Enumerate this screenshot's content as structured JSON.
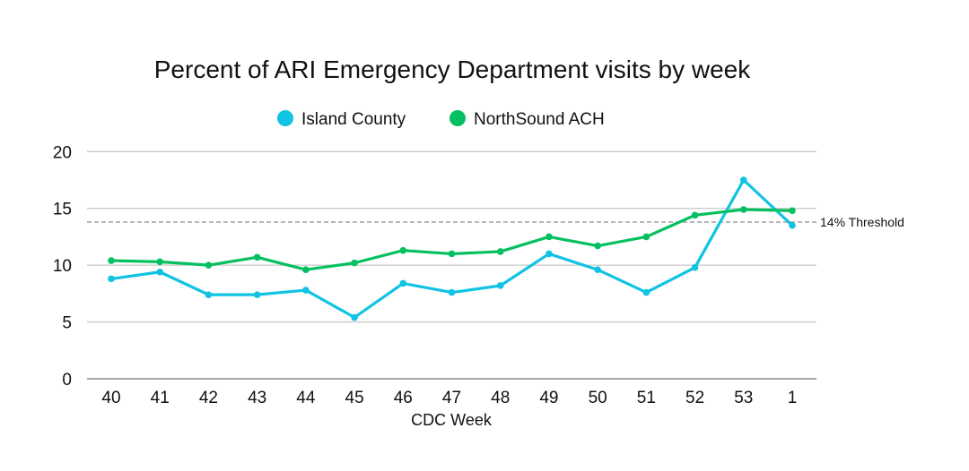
{
  "chart_data": {
    "type": "line",
    "title": "Percent of ARI Emergency Department visits by week",
    "xlabel": "CDC Week",
    "ylabel": "",
    "categories": [
      "40",
      "41",
      "42",
      "43",
      "44",
      "45",
      "46",
      "47",
      "48",
      "49",
      "50",
      "51",
      "52",
      "53",
      "1"
    ],
    "ylim": [
      0,
      20
    ],
    "yticks": [
      0,
      5,
      10,
      15,
      20
    ],
    "grid": true,
    "legend": "top",
    "series": [
      {
        "name": "Island County",
        "color": "#10c3e3",
        "values": [
          8.8,
          9.4,
          7.4,
          7.4,
          7.8,
          5.4,
          8.4,
          7.6,
          8.2,
          11.0,
          9.6,
          7.6,
          9.8,
          17.5,
          13.5
        ]
      },
      {
        "name": "NorthSound ACH",
        "color": "#04c060",
        "values": [
          10.4,
          10.3,
          10.0,
          10.7,
          9.6,
          10.2,
          11.3,
          11.0,
          11.2,
          12.5,
          11.7,
          12.5,
          14.4,
          14.9,
          14.8
        ]
      }
    ],
    "threshold": {
      "value": 13.8,
      "label": "14% Threshold",
      "color": "#a0a0a0"
    }
  }
}
